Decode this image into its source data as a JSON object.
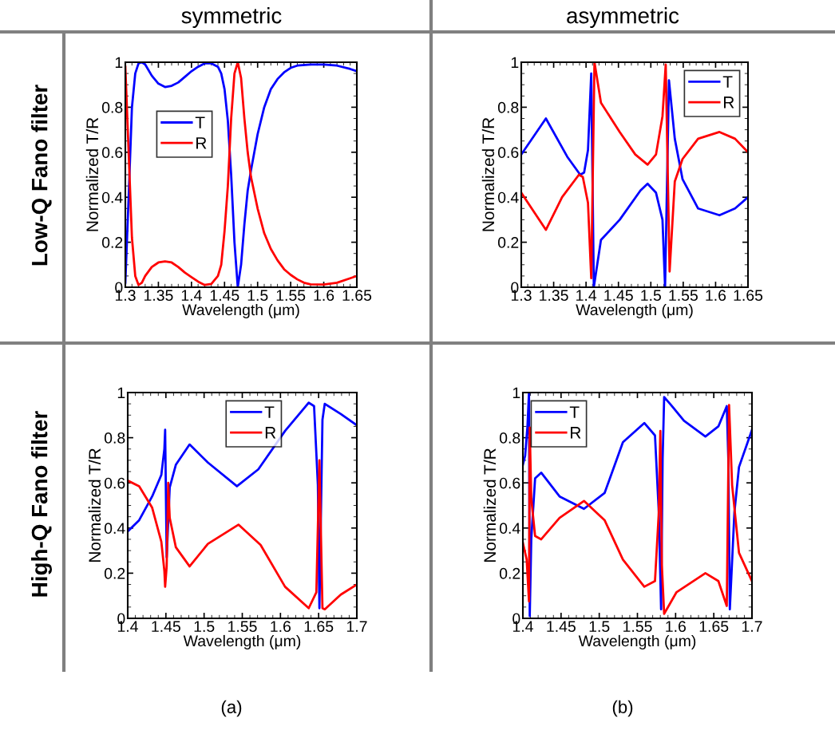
{
  "chart_data": [
    {
      "type": "line",
      "title": "symmetric",
      "annotations": [
        "Low-Q Fano filter"
      ],
      "xlabel": "Wavelength (μm)",
      "ylabel": "Normalized T/R",
      "xlim": [
        1.3,
        1.65
      ],
      "ylim": [
        0,
        1
      ],
      "xticks": [
        1.3,
        1.35,
        1.4,
        1.45,
        1.5,
        1.55,
        1.6,
        1.65
      ],
      "yticks": [
        0,
        0.2,
        0.4,
        0.6,
        0.8,
        1
      ],
      "legend": "left",
      "series": [
        {
          "name": "T",
          "color": "#0000ff",
          "x": [
            1.3,
            1.305,
            1.31,
            1.315,
            1.32,
            1.325,
            1.33,
            1.34,
            1.35,
            1.36,
            1.37,
            1.38,
            1.39,
            1.4,
            1.41,
            1.42,
            1.43,
            1.44,
            1.445,
            1.45,
            1.455,
            1.46,
            1.465,
            1.47,
            1.475,
            1.48,
            1.485,
            1.49,
            1.5,
            1.51,
            1.52,
            1.53,
            1.54,
            1.55,
            1.56,
            1.58,
            1.6,
            1.62,
            1.64,
            1.65
          ],
          "values": [
            0.02,
            0.4,
            0.8,
            0.95,
            0.995,
            1.0,
            0.99,
            0.94,
            0.905,
            0.89,
            0.895,
            0.91,
            0.935,
            0.96,
            0.98,
            0.995,
            0.995,
            0.98,
            0.95,
            0.88,
            0.74,
            0.5,
            0.2,
            0.0,
            0.1,
            0.28,
            0.43,
            0.52,
            0.68,
            0.8,
            0.88,
            0.925,
            0.955,
            0.975,
            0.985,
            0.99,
            0.99,
            0.985,
            0.97,
            0.96
          ]
        },
        {
          "name": "R",
          "color": "#ff0000",
          "x": [
            1.3,
            1.305,
            1.31,
            1.315,
            1.32,
            1.325,
            1.33,
            1.34,
            1.35,
            1.36,
            1.37,
            1.38,
            1.39,
            1.4,
            1.41,
            1.42,
            1.43,
            1.44,
            1.445,
            1.45,
            1.455,
            1.46,
            1.465,
            1.47,
            1.475,
            1.48,
            1.485,
            1.49,
            1.5,
            1.51,
            1.52,
            1.53,
            1.54,
            1.55,
            1.56,
            1.57,
            1.58,
            1.6,
            1.62,
            1.64,
            1.65
          ],
          "values": [
            0.98,
            0.6,
            0.22,
            0.05,
            0.01,
            0.02,
            0.05,
            0.09,
            0.11,
            0.115,
            0.11,
            0.09,
            0.065,
            0.045,
            0.025,
            0.01,
            0.015,
            0.05,
            0.1,
            0.25,
            0.45,
            0.75,
            0.95,
            1.0,
            0.93,
            0.75,
            0.6,
            0.49,
            0.35,
            0.24,
            0.17,
            0.12,
            0.08,
            0.055,
            0.035,
            0.02,
            0.013,
            0.012,
            0.02,
            0.04,
            0.05
          ]
        }
      ]
    },
    {
      "type": "line",
      "title": "asymmetric",
      "xlabel": "Wavelength (μm)",
      "ylabel": "Normalized T/R",
      "xlim": [
        1.3,
        1.65
      ],
      "ylim": [
        0,
        1
      ],
      "xticks": [
        1.3,
        1.35,
        1.4,
        1.45,
        1.5,
        1.55,
        1.6,
        1.65
      ],
      "yticks": [
        0,
        0.2,
        0.4,
        0.6,
        0.8,
        1
      ],
      "legend": "top right",
      "series": [
        {
          "name": "T",
          "color": "#0000ff",
          "x": [
            1.3,
            1.338,
            1.371,
            1.391,
            1.397,
            1.403,
            1.408,
            1.412,
            1.423,
            1.452,
            1.484,
            1.495,
            1.508,
            1.518,
            1.522,
            1.528,
            1.537,
            1.549,
            1.573,
            1.606,
            1.63,
            1.65
          ],
          "values": [
            0.59,
            0.75,
            0.58,
            0.5,
            0.51,
            0.61,
            0.95,
            0.0,
            0.21,
            0.3,
            0.43,
            0.46,
            0.42,
            0.3,
            0.0,
            0.92,
            0.66,
            0.48,
            0.35,
            0.32,
            0.35,
            0.4
          ]
        },
        {
          "name": "R",
          "color": "#ff0000",
          "x": [
            1.3,
            1.338,
            1.363,
            1.389,
            1.395,
            1.403,
            1.408,
            1.413,
            1.423,
            1.452,
            1.476,
            1.495,
            1.508,
            1.518,
            1.523,
            1.529,
            1.537,
            1.549,
            1.573,
            1.606,
            1.63,
            1.65
          ],
          "values": [
            0.42,
            0.255,
            0.4,
            0.5,
            0.49,
            0.375,
            0.04,
            1.0,
            0.82,
            0.69,
            0.59,
            0.545,
            0.59,
            0.76,
            0.99,
            0.07,
            0.47,
            0.57,
            0.66,
            0.69,
            0.66,
            0.6
          ]
        }
      ]
    },
    {
      "type": "line",
      "annotations": [
        "High-Q Fano filter",
        "(a)"
      ],
      "xlabel": "Wavelength (μm)",
      "ylabel": "Normalized T/R",
      "xlim": [
        1.4,
        1.7
      ],
      "ylim": [
        0,
        1
      ],
      "xticks": [
        1.4,
        1.45,
        1.5,
        1.55,
        1.6,
        1.65,
        1.7
      ],
      "yticks": [
        0,
        0.2,
        0.4,
        0.6,
        0.8,
        1
      ],
      "legend": "top",
      "series": [
        {
          "name": "T",
          "color": "#0000ff",
          "x": [
            1.4,
            1.415,
            1.432,
            1.444,
            1.448,
            1.449,
            1.451,
            1.455,
            1.463,
            1.481,
            1.505,
            1.543,
            1.571,
            1.606,
            1.637,
            1.644,
            1.649,
            1.651,
            1.655,
            1.658,
            1.679,
            1.7
          ],
          "values": [
            0.385,
            0.435,
            0.54,
            0.635,
            0.75,
            0.835,
            0.27,
            0.58,
            0.68,
            0.77,
            0.69,
            0.585,
            0.66,
            0.83,
            0.955,
            0.94,
            0.59,
            0.045,
            0.88,
            0.95,
            0.905,
            0.855
          ]
        },
        {
          "name": "R",
          "color": "#ff0000",
          "x": [
            1.4,
            1.415,
            1.432,
            1.444,
            1.448,
            1.449,
            1.451,
            1.453,
            1.455,
            1.463,
            1.481,
            1.505,
            1.545,
            1.574,
            1.606,
            1.637,
            1.647,
            1.651,
            1.655,
            1.658,
            1.679,
            1.7
          ],
          "values": [
            0.61,
            0.585,
            0.49,
            0.34,
            0.21,
            0.14,
            0.23,
            0.6,
            0.445,
            0.315,
            0.23,
            0.33,
            0.415,
            0.325,
            0.14,
            0.045,
            0.115,
            0.7,
            0.045,
            0.04,
            0.105,
            0.15
          ]
        }
      ]
    },
    {
      "type": "line",
      "annotations": [
        "(b)"
      ],
      "xlabel": "Wavelength (μm)",
      "ylabel": "Normalized T/R",
      "xlim": [
        1.4,
        1.7
      ],
      "ylim": [
        0,
        1
      ],
      "xticks": [
        1.4,
        1.45,
        1.5,
        1.55,
        1.6,
        1.65,
        1.7
      ],
      "yticks": [
        0,
        0.2,
        0.4,
        0.6,
        0.8,
        1
      ],
      "legend": "top left",
      "series": [
        {
          "name": "T",
          "color": "#0000ff",
          "x": [
            1.4,
            1.403,
            1.406,
            1.408,
            1.409,
            1.411,
            1.416,
            1.424,
            1.448,
            1.48,
            1.507,
            1.531,
            1.559,
            1.573,
            1.578,
            1.581,
            1.583,
            1.585,
            1.594,
            1.611,
            1.639,
            1.656,
            1.667,
            1.669,
            1.671,
            1.677,
            1.683,
            1.7
          ],
          "values": [
            0.68,
            0.72,
            0.85,
            1.0,
            0.01,
            0.35,
            0.62,
            0.645,
            0.54,
            0.485,
            0.555,
            0.78,
            0.865,
            0.81,
            0.47,
            0.04,
            0.705,
            0.98,
            0.945,
            0.875,
            0.805,
            0.85,
            0.94,
            0.71,
            0.04,
            0.47,
            0.67,
            0.835
          ]
        },
        {
          "name": "R",
          "color": "#ff0000",
          "x": [
            1.4,
            1.405,
            1.408,
            1.409,
            1.411,
            1.416,
            1.424,
            1.448,
            1.48,
            1.507,
            1.531,
            1.559,
            1.573,
            1.578,
            1.58,
            1.582,
            1.585,
            1.601,
            1.639,
            1.656,
            1.667,
            1.67,
            1.674,
            1.683,
            1.7
          ],
          "values": [
            0.335,
            0.26,
            0.075,
            0.845,
            0.53,
            0.365,
            0.35,
            0.445,
            0.52,
            0.435,
            0.26,
            0.14,
            0.165,
            0.47,
            0.83,
            0.235,
            0.02,
            0.115,
            0.2,
            0.165,
            0.055,
            0.945,
            0.59,
            0.29,
            0.165
          ]
        }
      ]
    }
  ]
}
